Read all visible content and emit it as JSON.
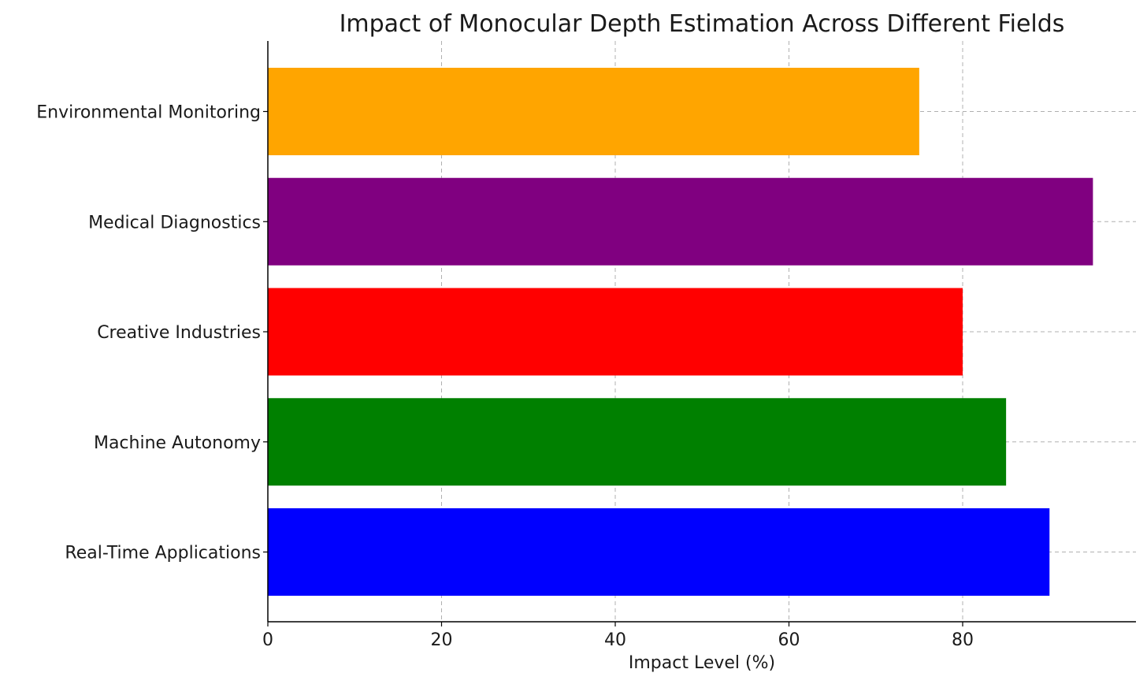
{
  "chart_data": {
    "type": "bar",
    "orientation": "horizontal",
    "title": "Impact of Monocular Depth Estimation Across Different Fields",
    "xlabel": "Impact Level (%)",
    "ylabel": "",
    "xlim": [
      0,
      100
    ],
    "xticks": [
      0,
      20,
      40,
      60,
      80
    ],
    "grid": true,
    "categories": [
      "Real-Time Applications",
      "Machine Autonomy",
      "Creative Industries",
      "Medical Diagnostics",
      "Environmental Monitoring"
    ],
    "values": [
      90,
      85,
      80,
      95,
      75
    ],
    "colors": [
      "#0000ff",
      "#008000",
      "#ff0000",
      "#800080",
      "#ffa500"
    ]
  }
}
